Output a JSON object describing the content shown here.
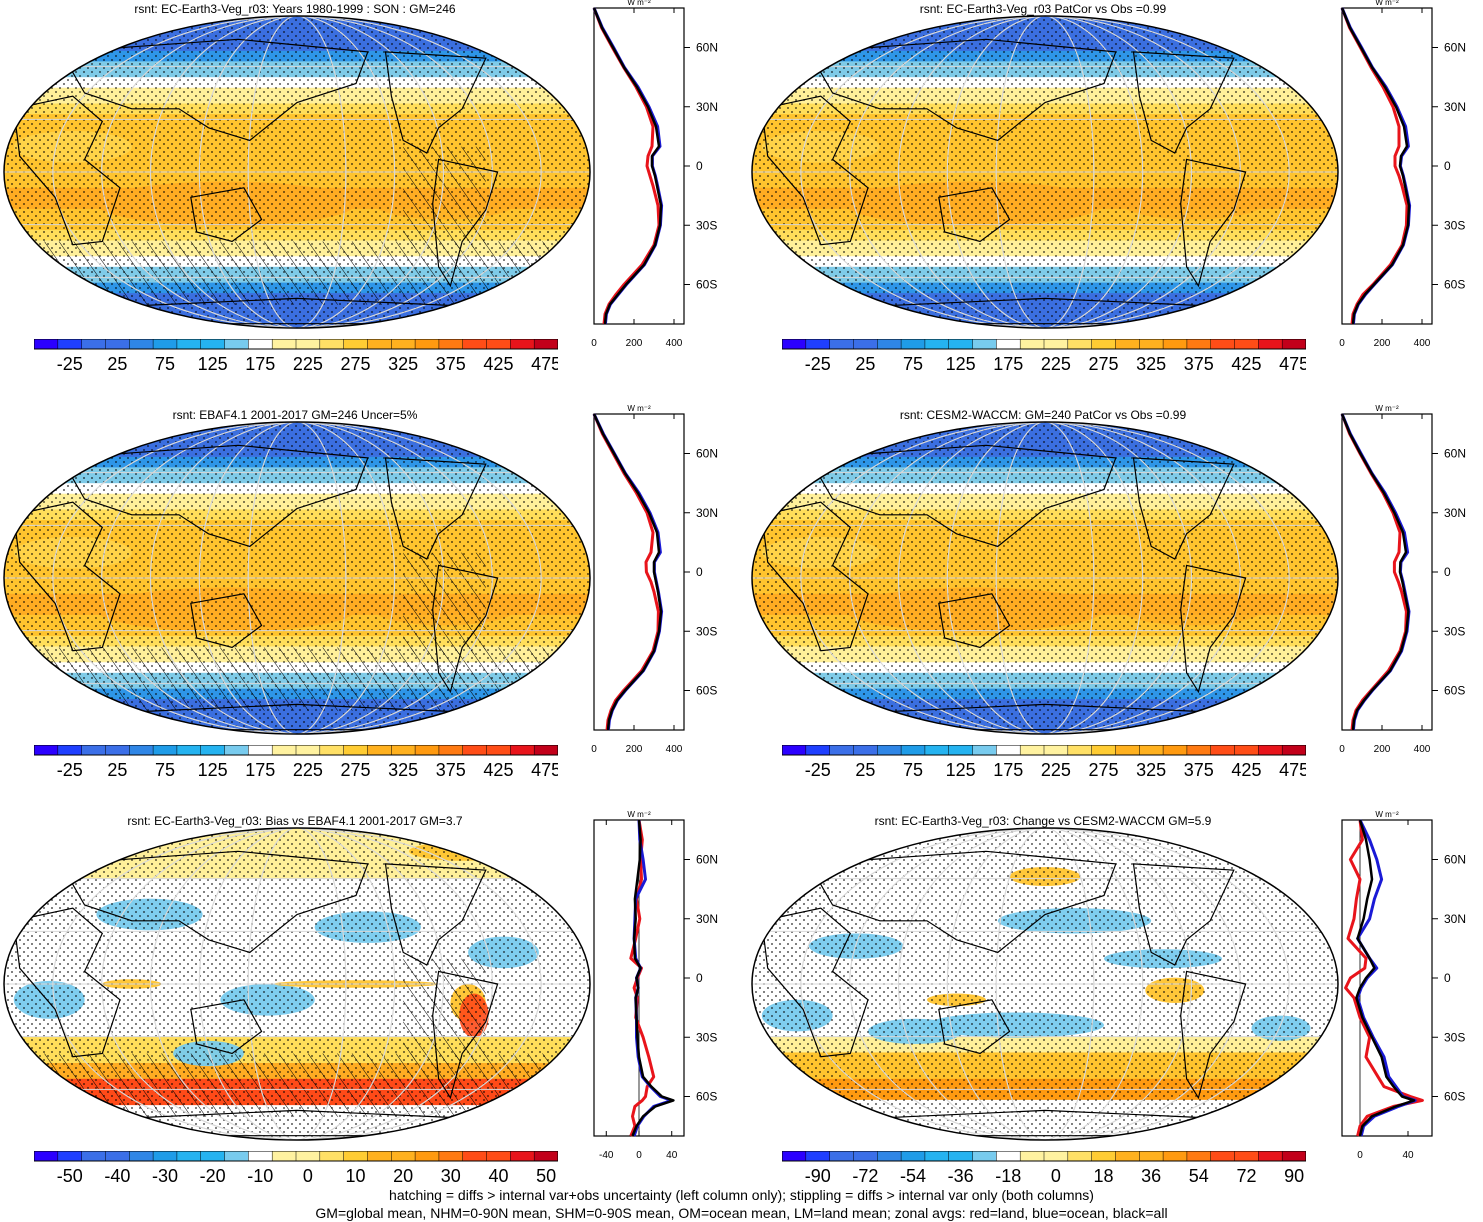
{
  "footer": {
    "line1": "hatching = diffs > internal var+obs uncertainty (left column only); stippling = diffs > internal var only (both columns)",
    "line2": "GM=global mean, NHM=0-90N mean, SHM=0-90S mean, OM=ocean mean, LM=land mean; zonal avgs: red=land, blue=ocean, black=all"
  },
  "colors": {
    "land": "#e8141b",
    "ocean": "#1a1ad6",
    "all": "#000000"
  },
  "chart_data": [
    {
      "type": "heatmap",
      "title": "rsnt: EC-Earth3-Veg_r03: Years 1980-1999 : SON : GM=246",
      "field": "absolute",
      "hatching": true,
      "colorbar": {
        "ticks": [
          "-25",
          "25",
          "75",
          "125",
          "175",
          "225",
          "275",
          "325",
          "375",
          "425",
          "475"
        ]
      },
      "zonal": {
        "unit": "W m⁻²",
        "xticks": [
          "0",
          "200",
          "400"
        ],
        "xlim": [
          0,
          450
        ],
        "yticks": [
          "60N",
          "30N",
          "0",
          "30S",
          "60S"
        ],
        "ylim": [
          -80,
          80
        ],
        "lat": [
          80,
          70,
          60,
          50,
          40,
          30,
          20,
          10,
          5,
          0,
          -5,
          -10,
          -20,
          -30,
          -40,
          -50,
          -60,
          -65,
          -70,
          -75,
          -80
        ],
        "all": [
          0,
          40,
          95,
          150,
          215,
          270,
          310,
          325,
          290,
          290,
          305,
          315,
          335,
          330,
          305,
          250,
          160,
          120,
          80,
          60,
          55
        ],
        "land": [
          0,
          38,
          92,
          148,
          210,
          262,
          295,
          290,
          270,
          265,
          280,
          295,
          320,
          325,
          300,
          240,
          150,
          110,
          75,
          55,
          50
        ],
        "ocean": [
          0,
          42,
          98,
          152,
          220,
          275,
          318,
          330,
          292,
          292,
          307,
          318,
          338,
          332,
          307,
          252,
          162,
          122,
          82,
          62,
          57
        ]
      }
    },
    {
      "type": "heatmap",
      "title": "rsnt: EC-Earth3-Veg_r03 PatCor vs Obs =0.99",
      "field": "absolute",
      "hatching": false,
      "colorbar": {
        "ticks": [
          "-25",
          "25",
          "75",
          "125",
          "175",
          "225",
          "275",
          "325",
          "375",
          "425",
          "475"
        ]
      },
      "zonal": {
        "unit": "W m⁻²",
        "xticks": [
          "0",
          "200",
          "400"
        ],
        "xlim": [
          0,
          450
        ],
        "yticks": [
          "60N",
          "30N",
          "0",
          "30S",
          "60S"
        ],
        "ylim": [
          -80,
          80
        ],
        "lat": [
          80,
          70,
          60,
          50,
          40,
          30,
          20,
          10,
          5,
          0,
          -5,
          -10,
          -20,
          -30,
          -40,
          -50,
          -60,
          -65,
          -70,
          -75,
          -80
        ],
        "all": [
          0,
          40,
          95,
          150,
          215,
          270,
          310,
          325,
          295,
          290,
          305,
          315,
          335,
          330,
          305,
          250,
          160,
          115,
          80,
          60,
          55
        ],
        "land": [
          0,
          38,
          92,
          145,
          205,
          255,
          285,
          285,
          265,
          265,
          285,
          300,
          325,
          322,
          300,
          242,
          155,
          105,
          75,
          55,
          50
        ],
        "ocean": [
          0,
          42,
          98,
          152,
          220,
          275,
          318,
          332,
          298,
          292,
          307,
          318,
          338,
          332,
          307,
          252,
          162,
          118,
          82,
          62,
          57
        ]
      }
    },
    {
      "type": "heatmap",
      "title": "rsnt: EBAF4.1 2001-2017 GM=246 Uncer=5%",
      "field": "absolute",
      "hatching": true,
      "colorbar": {
        "ticks": [
          "-25",
          "25",
          "75",
          "125",
          "175",
          "225",
          "275",
          "325",
          "375",
          "425",
          "475"
        ]
      },
      "zonal": {
        "unit": "W m⁻²",
        "xticks": [
          "0",
          "200",
          "400"
        ],
        "xlim": [
          0,
          450
        ],
        "yticks": [
          "60N",
          "30N",
          "0",
          "30S",
          "60S"
        ],
        "ylim": [
          -80,
          80
        ],
        "lat": [
          80,
          70,
          60,
          50,
          40,
          30,
          20,
          10,
          5,
          0,
          -5,
          -10,
          -20,
          -30,
          -40,
          -50,
          -60,
          -65,
          -70,
          -75,
          -80
        ],
        "all": [
          0,
          45,
          100,
          155,
          220,
          275,
          315,
          325,
          300,
          300,
          310,
          320,
          335,
          325,
          300,
          245,
          155,
          115,
          90,
          75,
          70
        ],
        "land": [
          0,
          42,
          96,
          150,
          212,
          265,
          295,
          285,
          260,
          262,
          285,
          300,
          322,
          320,
          295,
          238,
          148,
          108,
          85,
          70,
          65
        ],
        "ocean": [
          0,
          47,
          102,
          157,
          225,
          280,
          320,
          332,
          302,
          302,
          312,
          322,
          338,
          327,
          302,
          247,
          157,
          117,
          92,
          77,
          72
        ]
      }
    },
    {
      "type": "heatmap",
      "title": "rsnt: CESM2-WACCM: GM=240 PatCor vs Obs =0.99",
      "field": "absolute",
      "hatching": false,
      "colorbar": {
        "ticks": [
          "-25",
          "25",
          "75",
          "125",
          "175",
          "225",
          "275",
          "325",
          "375",
          "425",
          "475"
        ]
      },
      "zonal": {
        "unit": "W m⁻²",
        "xticks": [
          "0",
          "200",
          "400"
        ],
        "xlim": [
          0,
          450
        ],
        "yticks": [
          "60N",
          "30N",
          "0",
          "30S",
          "60S"
        ],
        "ylim": [
          -80,
          80
        ],
        "lat": [
          80,
          70,
          60,
          50,
          40,
          30,
          20,
          10,
          5,
          0,
          -5,
          -10,
          -20,
          -30,
          -40,
          -50,
          -60,
          -65,
          -70,
          -75,
          -80
        ],
        "all": [
          0,
          40,
          92,
          148,
          210,
          262,
          305,
          320,
          292,
          290,
          302,
          312,
          332,
          322,
          295,
          240,
          150,
          110,
          75,
          60,
          55
        ],
        "land": [
          0,
          38,
          90,
          145,
          205,
          255,
          290,
          285,
          262,
          262,
          282,
          298,
          322,
          318,
          290,
          232,
          145,
          102,
          70,
          55,
          50
        ],
        "ocean": [
          0,
          42,
          95,
          150,
          215,
          268,
          312,
          328,
          295,
          292,
          305,
          315,
          335,
          325,
          298,
          242,
          152,
          112,
          78,
          62,
          57
        ]
      }
    },
    {
      "type": "heatmap",
      "title": "rsnt: EC-Earth3-Veg_r03: Bias vs EBAF4.1 2001-2017  GM=3.7",
      "field": "bias",
      "hatching": true,
      "colorbar": {
        "ticks": [
          "-50",
          "-40",
          "-30",
          "-20",
          "-10",
          "0",
          "10",
          "20",
          "30",
          "40",
          "50"
        ]
      },
      "zonal": {
        "unit": "W m⁻²",
        "xticks": [
          "-40",
          "0",
          "40"
        ],
        "xlim": [
          -55,
          55
        ],
        "yticks": [
          "60N",
          "30N",
          "0",
          "30S",
          "60S"
        ],
        "ylim": [
          -80,
          80
        ],
        "lat": [
          80,
          70,
          60,
          50,
          40,
          30,
          20,
          10,
          5,
          0,
          -5,
          -10,
          -20,
          -30,
          -40,
          -50,
          -55,
          -60,
          -62,
          -65,
          -70,
          -75,
          -80
        ],
        "all": [
          0,
          2,
          1,
          -2,
          -5,
          -4,
          -6,
          -5,
          2,
          -3,
          -1,
          -4,
          -3,
          -2,
          0,
          5,
          15,
          28,
          42,
          20,
          5,
          -3,
          -8
        ],
        "land": [
          0,
          4,
          2,
          3,
          -3,
          1,
          -4,
          -10,
          3,
          -2,
          -6,
          -2,
          -4,
          5,
          12,
          18,
          10,
          8,
          4,
          -5,
          -8,
          -5,
          -10
        ],
        "ocean": [
          0,
          1,
          5,
          8,
          -4,
          -5,
          -6,
          -4,
          2,
          -3,
          -1,
          -4,
          -3,
          -3,
          -1,
          4,
          14,
          26,
          40,
          18,
          6,
          -2,
          -6
        ]
      }
    },
    {
      "type": "heatmap",
      "title": "rsnt: EC-Earth3-Veg_r03: Change vs CESM2-WACCM GM=5.9",
      "field": "change",
      "hatching": false,
      "colorbar": {
        "ticks": [
          "-90",
          "-72",
          "-54",
          "-36",
          "-18",
          "0",
          "18",
          "36",
          "54",
          "72",
          "90"
        ]
      },
      "zonal": {
        "unit": "W m⁻²",
        "xticks": [
          "0",
          "40"
        ],
        "xlim": [
          -15,
          60
        ],
        "yticks": [
          "60N",
          "30N",
          "0",
          "30S",
          "60S"
        ],
        "ylim": [
          -80,
          80
        ],
        "lat": [
          80,
          70,
          60,
          50,
          40,
          30,
          20,
          10,
          5,
          0,
          -5,
          -10,
          -20,
          -30,
          -40,
          -50,
          -55,
          -60,
          -62,
          -65,
          -70,
          -75,
          -80
        ],
        "all": [
          0,
          5,
          8,
          10,
          6,
          3,
          -2,
          8,
          12,
          5,
          0,
          -3,
          2,
          10,
          18,
          22,
          28,
          35,
          45,
          30,
          10,
          2,
          0
        ],
        "land": [
          0,
          2,
          -8,
          0,
          -3,
          -5,
          -10,
          5,
          4,
          -8,
          -12,
          -5,
          0,
          8,
          5,
          15,
          20,
          42,
          52,
          28,
          6,
          0,
          -2
        ],
        "ocean": [
          0,
          8,
          14,
          18,
          12,
          8,
          -2,
          8,
          14,
          6,
          1,
          -2,
          3,
          11,
          20,
          24,
          30,
          36,
          46,
          32,
          12,
          3,
          1
        ]
      }
    }
  ]
}
